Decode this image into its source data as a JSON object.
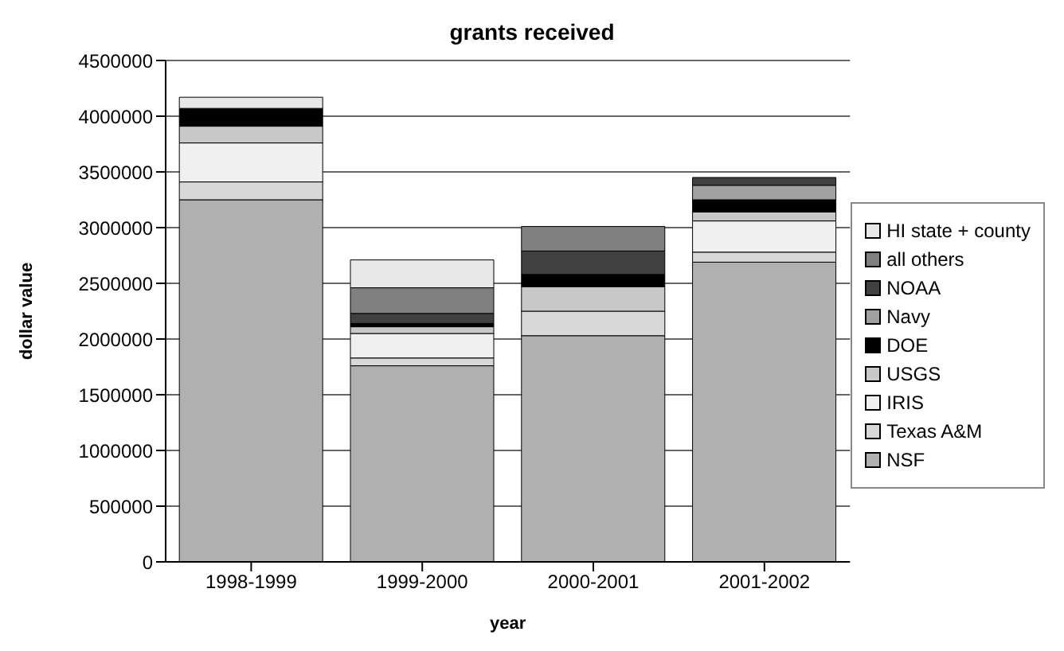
{
  "chart_data": {
    "type": "bar",
    "title": "grants received",
    "xlabel": "year",
    "ylabel": "dollar value",
    "categories": [
      "1998-1999",
      "1999-2000",
      "2000-2001",
      "2001-2002"
    ],
    "stacked": true,
    "series": [
      {
        "name": "NSF",
        "color": "#b0b0b0",
        "values": [
          3250000,
          1760000,
          2030000,
          2690000
        ]
      },
      {
        "name": "Texas A&M",
        "color": "#d8d8d8",
        "values": [
          160000,
          70000,
          220000,
          90000
        ]
      },
      {
        "name": "IRIS",
        "color": "#f0f0f0",
        "values": [
          350000,
          220000,
          0,
          280000
        ]
      },
      {
        "name": "USGS",
        "color": "#c8c8c8",
        "values": [
          150000,
          60000,
          220000,
          80000
        ]
      },
      {
        "name": "DOE",
        "color": "#000000",
        "values": [
          160000,
          30000,
          110000,
          110000
        ]
      },
      {
        "name": "Navy",
        "color": "#a0a0a0",
        "values": [
          0,
          0,
          0,
          130000
        ]
      },
      {
        "name": "NOAA",
        "color": "#404040",
        "values": [
          0,
          90000,
          210000,
          70000
        ]
      },
      {
        "name": "all others",
        "color": "#808080",
        "values": [
          0,
          230000,
          220000,
          0
        ]
      },
      {
        "name": "HI state + county",
        "color": "#e8e8e8",
        "values": [
          100000,
          250000,
          0,
          0
        ]
      }
    ],
    "ylim": [
      0,
      4500000
    ],
    "yticks": [
      0,
      500000,
      1000000,
      1500000,
      2000000,
      2500000,
      3000000,
      3500000,
      4000000,
      4500000
    ],
    "grid": "y",
    "legend": "right"
  }
}
